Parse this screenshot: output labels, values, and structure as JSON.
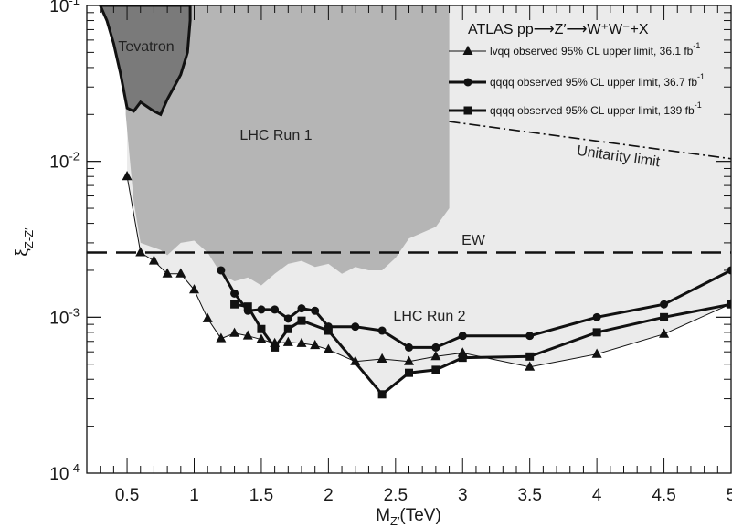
{
  "chart_data": {
    "type": "line",
    "title": "ATLAS pp⟶Z′⟶W⁺W⁻+X",
    "xlabel": "M_Z′ (TeV)",
    "ylabel": "ξ_Z-Z′",
    "xlim": [
      0.2,
      5.0
    ],
    "ylim": [
      0.0001,
      0.1
    ],
    "yscale": "log",
    "grid": false,
    "legend_position": "top-right",
    "x_ticks": [
      0.5,
      1,
      1.5,
      2,
      2.5,
      3,
      3.5,
      4,
      4.5,
      5
    ],
    "x_tick_labels": [
      "0.5",
      "1",
      "1.5",
      "2",
      "2.5",
      "3",
      "3.5",
      "4",
      "4.5",
      "5"
    ],
    "y_ticks": [
      0.0001,
      0.001,
      0.01,
      0.1
    ],
    "y_tick_labels": [
      {
        "base": "10",
        "exp": "-4"
      },
      {
        "base": "10",
        "exp": "-3"
      },
      {
        "base": "10",
        "exp": "-2"
      },
      {
        "base": "10",
        "exp": "-1"
      }
    ],
    "series": [
      {
        "name": "lvqq observed 95% CL upper limit, 36.1 fb",
        "lumi_exponent": "-1",
        "marker": "triangle",
        "line_width": "thin",
        "x": [
          0.5,
          0.6,
          0.7,
          0.8,
          0.9,
          1.0,
          1.1,
          1.2,
          1.3,
          1.4,
          1.5,
          1.6,
          1.7,
          1.8,
          1.9,
          2.0,
          2.2,
          2.4,
          2.6,
          2.8,
          3.0,
          3.5,
          4.0,
          4.5,
          5.0
        ],
        "y": [
          0.008,
          0.0026,
          0.0023,
          0.0019,
          0.0019,
          0.0015,
          0.00098,
          0.00073,
          0.00079,
          0.00076,
          0.00072,
          0.00068,
          0.00069,
          0.00068,
          0.00066,
          0.00062,
          0.00052,
          0.00054,
          0.00052,
          0.00056,
          0.00059,
          0.00048,
          0.00058,
          0.00078,
          0.00122
        ]
      },
      {
        "name": "qqqq observed 95% CL upper limit, 36.7 fb",
        "lumi_exponent": "-1",
        "marker": "circle",
        "line_width": "thick",
        "x": [
          1.2,
          1.3,
          1.4,
          1.5,
          1.6,
          1.7,
          1.8,
          1.9,
          2.0,
          2.2,
          2.4,
          2.6,
          2.8,
          3.0,
          3.5,
          4.0,
          4.5,
          5.0
        ],
        "y": [
          0.002,
          0.00142,
          0.0011,
          0.00112,
          0.00112,
          0.00098,
          0.00114,
          0.0011,
          0.00087,
          0.00087,
          0.00082,
          0.00064,
          0.00064,
          0.00076,
          0.00076,
          0.001,
          0.00121,
          0.002
        ]
      },
      {
        "name": "qqqq observed 95% CL upper limit, 139 fb",
        "lumi_exponent": "-1",
        "marker": "square",
        "line_width": "thick",
        "x": [
          1.3,
          1.4,
          1.5,
          1.6,
          1.7,
          1.8,
          2.0,
          2.4,
          2.6,
          2.8,
          3.0,
          3.5,
          4.0,
          4.5,
          5.0
        ],
        "y": [
          0.00121,
          0.00117,
          0.00084,
          0.00064,
          0.00084,
          0.00095,
          0.00082,
          0.00032,
          0.00044,
          0.00046,
          0.00055,
          0.00056,
          0.0008,
          0.001,
          0.00121
        ]
      }
    ],
    "reference_lines": [
      {
        "label": "EW",
        "style": "dashed",
        "y": 0.0026
      },
      {
        "label": "Unitarity limit",
        "style": "dash-dot",
        "x": [
          2.9,
          5.0
        ],
        "y": [
          0.018,
          0.0104
        ]
      }
    ],
    "excluded_regions": [
      {
        "label": "Tevatron",
        "color": "#7a7a7a",
        "x": [
          0.3,
          0.35,
          0.4,
          0.45,
          0.5,
          0.55,
          0.6,
          0.7,
          0.75,
          0.8,
          0.9,
          0.95,
          0.97,
          0.97,
          0.3
        ],
        "y": [
          0.1,
          0.08,
          0.057,
          0.037,
          0.022,
          0.021,
          0.024,
          0.021,
          0.02,
          0.025,
          0.036,
          0.05,
          0.08,
          0.1,
          0.1
        ]
      },
      {
        "label": "LHC Run 1",
        "color": "#b5b5b5",
        "x": [
          0.49,
          0.55,
          0.6,
          0.75,
          0.8,
          0.9,
          1.0,
          1.1,
          1.2,
          1.3,
          1.4,
          1.5,
          1.6,
          1.7,
          1.8,
          1.9,
          2.0,
          2.1,
          2.2,
          2.3,
          2.4,
          2.5,
          2.6,
          2.8,
          2.9,
          2.9,
          0.49
        ],
        "y": [
          0.02,
          0.0055,
          0.003,
          0.0027,
          0.0025,
          0.003,
          0.0031,
          0.0026,
          0.0019,
          0.0017,
          0.0018,
          0.0016,
          0.0019,
          0.0022,
          0.0023,
          0.0021,
          0.0022,
          0.0019,
          0.0021,
          0.002,
          0.002,
          0.0024,
          0.0032,
          0.0038,
          0.005,
          0.1,
          0.1
        ]
      },
      {
        "label": "LHC Run 2",
        "color": "#ebebeb",
        "boundary": "union of observed upper limits"
      }
    ]
  }
}
